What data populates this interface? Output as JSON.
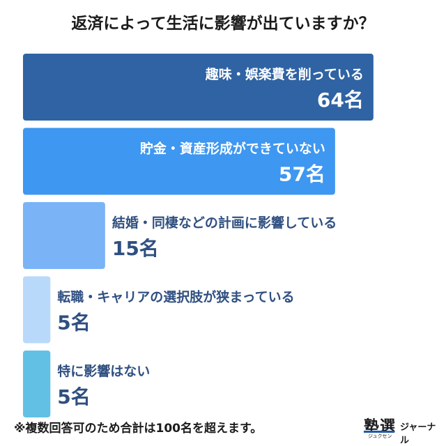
{
  "chart_data": {
    "type": "bar",
    "orientation": "horizontal",
    "title": "返済によって生活に影響が出ていますか？",
    "categories": [
      "趣味・娯楽費を削っている",
      "貯金・資産形成ができていない",
      "結婚・同棲などの計画に影響している",
      "転職・キャリアの選択肢が狭まっている",
      "特に影響はない"
    ],
    "values": [
      64,
      57,
      15,
      5,
      5
    ],
    "value_labels": [
      "64名",
      "57名",
      "15名",
      "5名",
      "5名"
    ],
    "colors": [
      "#2f63a3",
      "#3e97f0",
      "#7ab4f6",
      "#b9d9fb",
      "#62c0e4"
    ],
    "xlim": [
      0,
      70
    ],
    "grid": false,
    "legend": "none"
  },
  "footnote": "※複数回答可のため合計は100名を超えます。",
  "logo": {
    "main": "塾選",
    "tail": "ジャーナル",
    "sub": "ジュクセン"
  }
}
